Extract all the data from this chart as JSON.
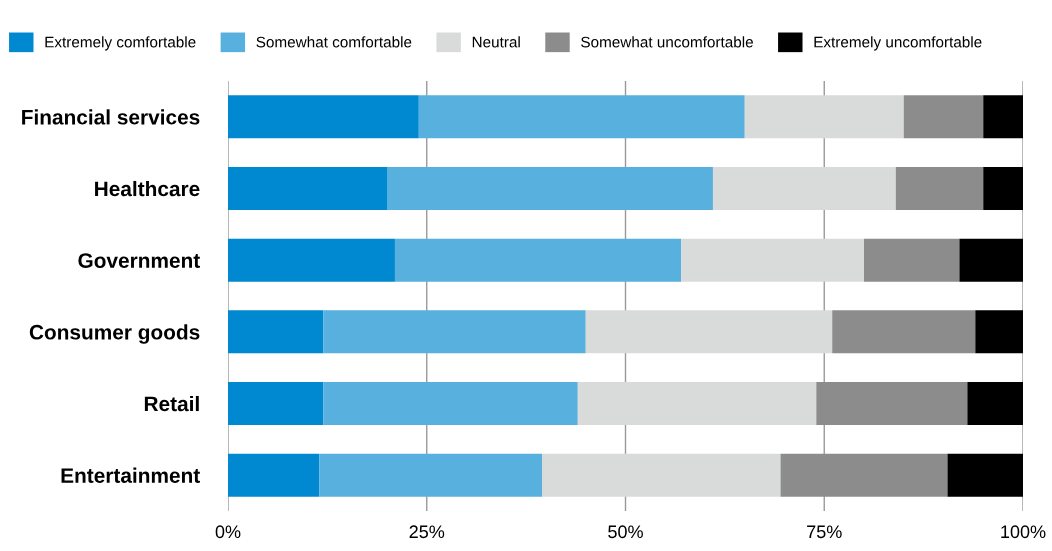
{
  "chart_data": {
    "type": "bar",
    "orientation": "horizontal",
    "stacked": true,
    "categories": [
      "Financial services",
      "Healthcare",
      "Government",
      "Consumer goods",
      "Retail",
      "Entertainment"
    ],
    "series": [
      {
        "name": "Extremely comfortable",
        "color": "#0088d1",
        "values": [
          24,
          20,
          21,
          12,
          12,
          11.5
        ]
      },
      {
        "name": "Somewhat comfortable",
        "color": "#57b0de",
        "values": [
          41,
          41,
          36,
          33,
          32,
          28
        ]
      },
      {
        "name": "Neutral",
        "color": "#d9dada",
        "values": [
          20,
          23,
          23,
          31,
          30,
          30
        ]
      },
      {
        "name": "Somewhat uncomfortable",
        "color": "#8c8c8c",
        "values": [
          10,
          11,
          12,
          18,
          19,
          21
        ]
      },
      {
        "name": "Extremely uncomfortable",
        "color": "#000000",
        "values": [
          5,
          5,
          8,
          6,
          7,
          9.5
        ]
      }
    ],
    "xlim": [
      0,
      100
    ],
    "xticks": [
      {
        "value": 0,
        "label": "0%"
      },
      {
        "value": 25,
        "label": "25%"
      },
      {
        "value": 50,
        "label": "50%"
      },
      {
        "value": 75,
        "label": "75%"
      },
      {
        "value": 100,
        "label": "100%"
      }
    ],
    "grid": "x",
    "legend": "top"
  }
}
